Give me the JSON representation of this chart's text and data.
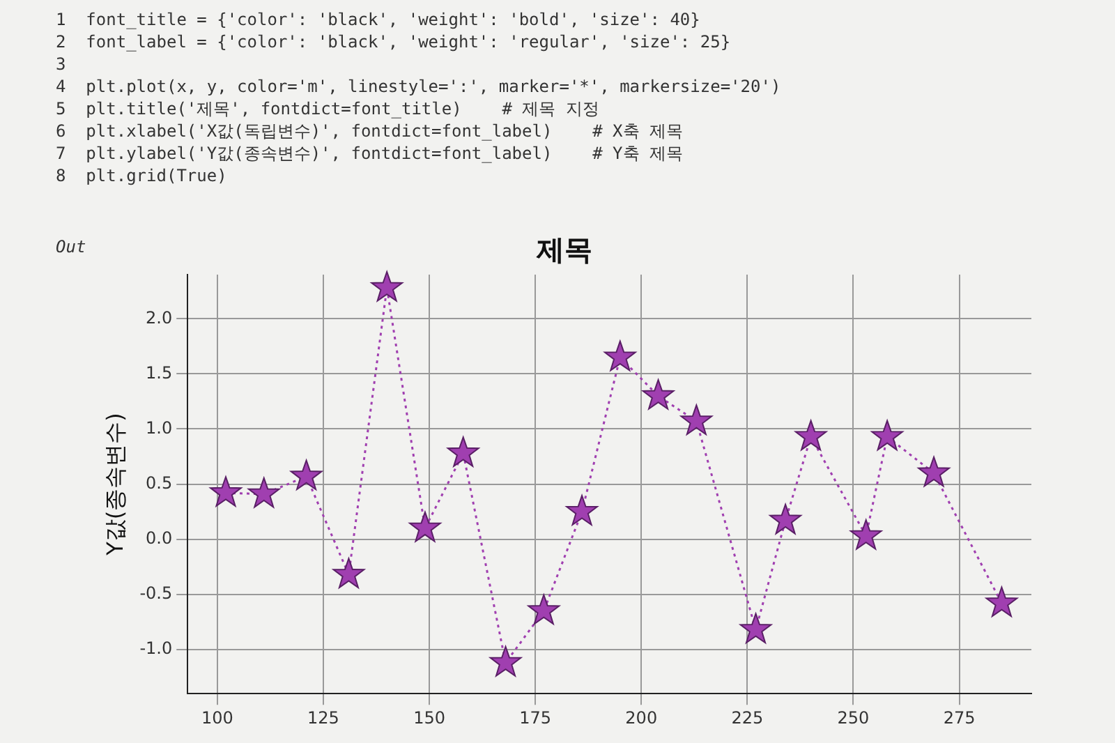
{
  "chart_data": {
    "type": "line",
    "title": "제목",
    "ylabel": "Y값(종속변수)",
    "annotations": [
      "1  font_title = {'color': 'black', 'weight': 'bold', 'size': 40}",
      "2  font_label = {'color': 'black', 'weight': 'regular', 'size': 25}",
      "3",
      "4  plt.plot(x, y, color='m', linestyle=':', marker='*', markersize='20')",
      "5  plt.title('제목', fontdict=font_title)    # 제목 지정",
      "6  plt.xlabel('X값(독립변수)', fontdict=font_label)    # X축 제목",
      "7  plt.ylabel('Y값(종속변수)', fontdict=font_label)    # Y축 제목",
      "8  plt.grid(True)",
      "Out"
    ],
    "x": [
      102,
      111,
      121,
      131,
      140,
      149,
      158,
      168,
      177,
      186,
      195,
      204,
      213,
      227,
      234,
      240,
      253,
      258,
      269,
      285
    ],
    "series": [
      {
        "color": "#a03fb0",
        "values": [
          0.42,
          0.41,
          0.57,
          -0.32,
          2.28,
          0.1,
          0.78,
          -1.12,
          -0.65,
          0.25,
          1.65,
          1.3,
          1.07,
          -0.82,
          0.17,
          0.93,
          0.03,
          0.93,
          0.6,
          -0.58
        ]
      }
    ],
    "xlim": [
      93,
      292
    ],
    "xticks": [
      100,
      125,
      150,
      175,
      200,
      225,
      250,
      275
    ],
    "ylim": [
      -1.4,
      2.4
    ],
    "yticks": [
      {
        "value": -1,
        "label": "-1.0"
      },
      -0.5,
      {
        "value": 0,
        "label": "0.0"
      },
      0.5,
      {
        "value": 1,
        "label": "1.0"
      },
      1.5,
      {
        "value": 2,
        "label": "2.0"
      }
    ],
    "grid": true,
    "legend": false,
    "marker": "star",
    "line_style": "dotted"
  }
}
